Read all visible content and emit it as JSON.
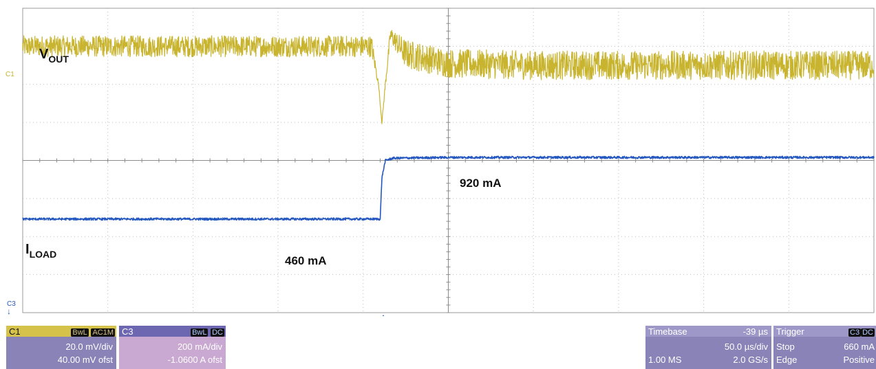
{
  "chart_data": {
    "type": "line",
    "title": "",
    "xlabel": "",
    "ylabel": "",
    "grid": true,
    "grid_divisions": {
      "x": 10,
      "y": 8
    },
    "trigger_division": 4.2,
    "series": [
      {
        "name": "V_OUT",
        "channel": "C1",
        "color": "#c8b42e",
        "x_div": [
          0,
          4.1,
          4.18,
          4.22,
          4.26,
          4.32,
          4.5,
          5.0,
          6.0,
          8.0,
          10.0
        ],
        "y_div": [
          7.0,
          7.0,
          6.0,
          5.0,
          6.0,
          7.3,
          6.8,
          6.55,
          6.5,
          6.5,
          6.5
        ],
        "noise_div": [
          0.28,
          0.28,
          0.05,
          0.05,
          0.1,
          0.2,
          0.38,
          0.38,
          0.38,
          0.38,
          0.38
        ]
      },
      {
        "name": "I_LOAD",
        "channel": "C3",
        "color": "#2458c0",
        "x_div": [
          0,
          4.2,
          4.22,
          4.26,
          4.35,
          5.0,
          10.0
        ],
        "y_div": [
          2.46,
          2.46,
          3.55,
          4.0,
          4.06,
          4.08,
          4.08
        ],
        "noise_div": [
          0.03,
          0.03,
          0.03,
          0.03,
          0.03,
          0.03,
          0.03
        ]
      }
    ]
  },
  "labels": {
    "vout_main": "V",
    "vout_sub": "OUT",
    "iload_main": "I",
    "iload_sub": "LOAD",
    "ann_high": "920 mA",
    "ann_low": "460 mA",
    "ch1_marker": "C1",
    "ch3_marker": "C3",
    "ch3_arrow": "↓"
  },
  "colors": {
    "ch1": "#c8b42e",
    "ch3": "#2458c0",
    "panel": "#8a83b8",
    "ch1_header": "#d4c24a",
    "ch3_header": "#6d66b0",
    "ch3_body": "#c9a8d1",
    "trigger_marker": "#2a62c9"
  },
  "panels": {
    "c1": {
      "name": "C1",
      "tag1": "BwL",
      "tag2": "AC1M",
      "scale": "20.0 mV/div",
      "offset": "40.00 mV ofst"
    },
    "c3": {
      "name": "C3",
      "tag1": "BwL",
      "tag2": "DC",
      "scale": "200 mA/div",
      "offset": "-1.0600 A ofst"
    },
    "timebase": {
      "label": "Timebase",
      "delay": "-39 µs",
      "scale": "50.0 µs/div",
      "samples": "1.00 MS",
      "rate": "2.0 GS/s"
    },
    "trigger": {
      "label": "Trigger",
      "tag1": "C3",
      "tag2": "DC",
      "state": "Stop",
      "level": "660 mA",
      "type": "Edge",
      "slope": "Positive"
    }
  }
}
